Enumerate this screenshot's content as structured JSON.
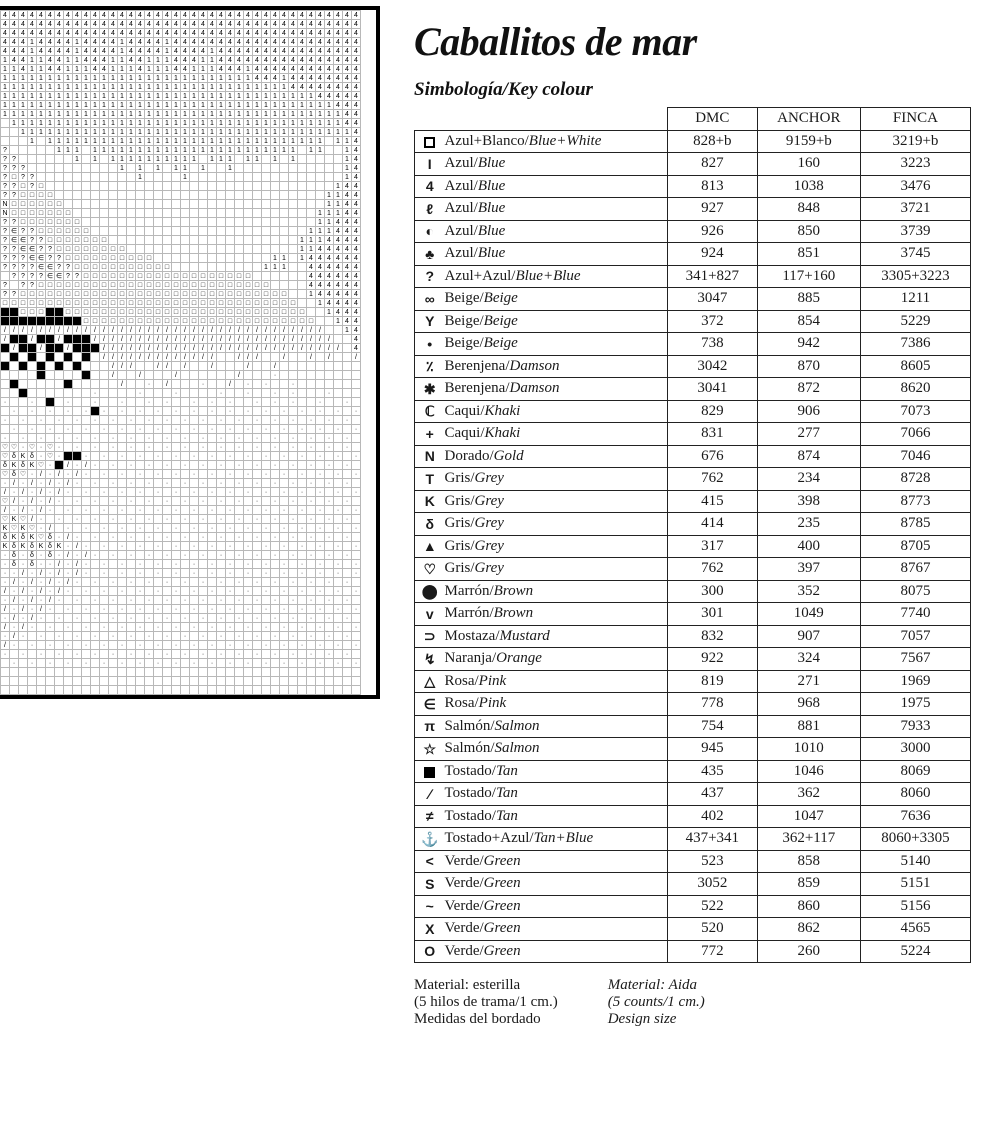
{
  "title": "Caballitos de mar",
  "subtitle": "Simbología/Key colour",
  "table": {
    "headers": [
      "DMC",
      "ANCHOR",
      "FINCA"
    ],
    "rows": [
      {
        "sym": "□",
        "name_es": "Azul+Blanco",
        "name_en": "Blue+White",
        "dmc": "828+b",
        "anchor": "9159+b",
        "finca": "3219+b"
      },
      {
        "sym": "I",
        "name_es": "Azul",
        "name_en": "Blue",
        "dmc": "827",
        "anchor": "160",
        "finca": "3223"
      },
      {
        "sym": "4",
        "name_es": "Azul",
        "name_en": "Blue",
        "dmc": "813",
        "anchor": "1038",
        "finca": "3476"
      },
      {
        "sym": "ℓ",
        "name_es": "Azul",
        "name_en": "Blue",
        "dmc": "927",
        "anchor": "848",
        "finca": "3721"
      },
      {
        "sym": "◐",
        "name_es": "Azul",
        "name_en": "Blue",
        "dmc": "926",
        "anchor": "850",
        "finca": "3739"
      },
      {
        "sym": "♣",
        "name_es": "Azul",
        "name_en": "Blue",
        "dmc": "924",
        "anchor": "851",
        "finca": "3745"
      },
      {
        "sym": "?",
        "name_es": "Azul+Azul",
        "name_en": "Blue+Blue",
        "dmc": "341+827",
        "anchor": "117+160",
        "finca": "3305+3223"
      },
      {
        "sym": "∞",
        "name_es": "Beige",
        "name_en": "Beige",
        "dmc": "3047",
        "anchor": "885",
        "finca": "1211"
      },
      {
        "sym": "Y",
        "name_es": "Beige",
        "name_en": "Beige",
        "dmc": "372",
        "anchor": "854",
        "finca": "5229"
      },
      {
        "sym": "•",
        "name_es": "Beige",
        "name_en": "Beige",
        "dmc": "738",
        "anchor": "942",
        "finca": "7386"
      },
      {
        "sym": "٪",
        "name_es": "Berenjena",
        "name_en": "Damson",
        "dmc": "3042",
        "anchor": "870",
        "finca": "8605"
      },
      {
        "sym": "✱",
        "name_es": "Berenjena",
        "name_en": "Damson",
        "dmc": "3041",
        "anchor": "872",
        "finca": "8620"
      },
      {
        "sym": "ℂ",
        "name_es": "Caqui",
        "name_en": "Khaki",
        "dmc": "829",
        "anchor": "906",
        "finca": "7073"
      },
      {
        "sym": "+",
        "name_es": "Caqui",
        "name_en": "Khaki",
        "dmc": "831",
        "anchor": "277",
        "finca": "7066"
      },
      {
        "sym": "N",
        "name_es": "Dorado",
        "name_en": "Gold",
        "dmc": "676",
        "anchor": "874",
        "finca": "7046"
      },
      {
        "sym": "T",
        "name_es": "Gris",
        "name_en": "Grey",
        "dmc": "762",
        "anchor": "234",
        "finca": "8728"
      },
      {
        "sym": "K",
        "name_es": "Gris",
        "name_en": "Grey",
        "dmc": "415",
        "anchor": "398",
        "finca": "8773"
      },
      {
        "sym": "δ",
        "name_es": "Gris",
        "name_en": "Grey",
        "dmc": "414",
        "anchor": "235",
        "finca": "8785"
      },
      {
        "sym": "▲",
        "name_es": "Gris",
        "name_en": "Grey",
        "dmc": "317",
        "anchor": "400",
        "finca": "8705"
      },
      {
        "sym": "♡",
        "name_es": "Gris",
        "name_en": "Grey",
        "dmc": "762",
        "anchor": "397",
        "finca": "8767"
      },
      {
        "sym": "⬤",
        "name_es": "Marrón",
        "name_en": "Brown",
        "dmc": "300",
        "anchor": "352",
        "finca": "8075"
      },
      {
        "sym": "v",
        "name_es": "Marrón",
        "name_en": "Brown",
        "dmc": "301",
        "anchor": "1049",
        "finca": "7740"
      },
      {
        "sym": "⊃",
        "name_es": "Mostaza",
        "name_en": "Mustard",
        "dmc": "832",
        "anchor": "907",
        "finca": "7057"
      },
      {
        "sym": "↯",
        "name_es": "Naranja",
        "name_en": "Orange",
        "dmc": "922",
        "anchor": "324",
        "finca": "7567"
      },
      {
        "sym": "△",
        "name_es": "Rosa",
        "name_en": "Pink",
        "dmc": "819",
        "anchor": "271",
        "finca": "1969"
      },
      {
        "sym": "∈",
        "name_es": "Rosa",
        "name_en": "Pink",
        "dmc": "778",
        "anchor": "968",
        "finca": "1975"
      },
      {
        "sym": "π",
        "name_es": "Salmón",
        "name_en": "Salmon",
        "dmc": "754",
        "anchor": "881",
        "finca": "7933"
      },
      {
        "sym": "☆",
        "name_es": "Salmón",
        "name_en": "Salmon",
        "dmc": "945",
        "anchor": "1010",
        "finca": "3000"
      },
      {
        "sym": "■",
        "name_es": "Tostado",
        "name_en": "Tan",
        "dmc": "435",
        "anchor": "1046",
        "finca": "8069"
      },
      {
        "sym": "∕",
        "name_es": "Tostado",
        "name_en": "Tan",
        "dmc": "437",
        "anchor": "362",
        "finca": "8060"
      },
      {
        "sym": "≠",
        "name_es": "Tostado",
        "name_en": "Tan",
        "dmc": "402",
        "anchor": "1047",
        "finca": "7636"
      },
      {
        "sym": "⚓",
        "name_es": "Tostado+Azul",
        "name_en": "Tan+Blue",
        "dmc": "437+341",
        "anchor": "362+117",
        "finca": "8060+3305"
      },
      {
        "sym": "<",
        "name_es": "Verde",
        "name_en": "Green",
        "dmc": "523",
        "anchor": "858",
        "finca": "5140"
      },
      {
        "sym": "S",
        "name_es": "Verde",
        "name_en": "Green",
        "dmc": "3052",
        "anchor": "859",
        "finca": "5151"
      },
      {
        "sym": "~",
        "name_es": "Verde",
        "name_en": "Green",
        "dmc": "522",
        "anchor": "860",
        "finca": "5156"
      },
      {
        "sym": "X",
        "name_es": "Verde",
        "name_en": "Green",
        "dmc": "520",
        "anchor": "862",
        "finca": "4565"
      },
      {
        "sym": "O",
        "name_es": "Verde",
        "name_en": "Green",
        "dmc": "772",
        "anchor": "260",
        "finca": "5224"
      }
    ]
  },
  "materials": {
    "left": {
      "l1": "Material: esterilla",
      "l2": "(5 hilos de trama/1 cm.)",
      "l3": "Medidas del bordado"
    },
    "right": {
      "l1": "Material: Aida",
      "l2": "(5 counts/1 cm.)",
      "l3": "Design size"
    }
  },
  "chart": {
    "cols": 40,
    "pattern": [
      "4444444444444444444444444444444444444444",
      "4444444444444444444444444444444444444444",
      "4444444444444444444444444444444444444444",
      "4441444414444144441444444444444444444444",
      "4441444414444144441444414444444444444444",
      "1441144114441144111444114444444444444444",
      "1141144111441114111441114441444444444444",
      "1111111111111111111111111111444144444444",
      "1111111111111111111111111111111144444444",
      "1111111111111111111111111111111111144444",
      "1111111111111111111111111111111111111444",
      "1111111111111111111111111111111111111144",
      " 111111111111111111111111111111111111144",
      "  11111111111111111111111111111111111114",
      "   1 1111111111111111111111111111111 114",
      "?     111 11111111111111111111111 11  14",
      "??      1 1 1111111111 111 11 1 1     14",
      "???          1 1 1 11 1  1            14",
      "?□??           1    1                 14",
      "??□?□                                144",
      "??□□□□                              1144",
      "N□□□□□□                             1144",
      "N□□□□□□□                           11144",
      "??□□□□□□□                          11444",
      "?∈??□□□□□□                        111444",
      "?∈∈??□□□□□□□                     1114444",
      "??∈∈??□□□□□□□□                   1144444",
      "???∈∈??□□□□□□□□□□             11 1444444",
      "????∈∈??□□□□□□□□□□□          111  444444",
      " ????∈∈??□□□□□□□□□□□□□□□□□□□      444444",
      "? ??□□□□□□□□□□□□□□□□□□□□□□□□□□    444444",
      "??□□□□□□□□□□□□□□□□□□□□□□□□□□□□□□  144444",
      "□□□□□□□□□□□□□□□□□□□□□□□□□□□□□□□□□  14444",
      "■■□□□■■□□□□□□□□□□□□□□□□□□□□□□□□□□□  1444",
      "■■■■■■■■■□□□□□□□□□□□□□□□□□□□□□□□□□□  144",
      "////////////////////////////////////  14",
      "/■■/■■/■■■///////////////////////////  4",
      "■/■■/■■/■■■/////////////////////////// 4",
      " ■ ■ ■ ■ ■ /////////////  ///  /  / /  /",
      "■ ■ ■ ■ ■   ///  // /  /   /  /         ",
      "    ■    ■  /  /   /      /   ·         ",
      " ■     ■     /  · /   ·  / · ·  ·       ",
      "  ■       ·    ·   ·    ·  ·  · ·   ·   ",
      "·  · ■ ·  ·  ·  · ·  · · ·  · · ·  ·  · ",
      " · · · · ·■· · · · · · · · · · · · · · ·",
      "· · · · · · · · · · · · · · · · · · · · ",
      " · · · · · · · · · · · · · · · · · · · ·",
      "· · · · · · · · · · · · · · · · · · · · ",
      "♡♡·♡·♡· · · · · · · · · · · · · · · · · ",
      "♡δKδ·♡·■■· · · · · · · · · · · · · · · ·",
      "δKδK♡·■/·/· · · · · · · · · · · · · · · ",
      "♡δ♡·/·/·/· · · · · · · · · · · · · · · ·",
      "·/·/·/·/· · · · · · · · · · · · · · · · ",
      "/·/·/·/· · · · · · · · · · · · · · · · ·",
      "♡/·/·/· · · · · · · · · · · · · · · · · ",
      "/·/·/· · · · · · · · · · · · · · · · · ·",
      "♡K♡/· · · · · · · · · · · · · · · · · · ",
      "K♡K♡·/ · · · · · · · · · · · · · · · · ·",
      "δKδK♡δ·/· · · · · · · · · · · · · · · · ",
      "KδKδKδK·/· · · · · · · · · · · · · · · ·",
      "·δ·δ·δ·/·/· · · · · · · · · · · · · · · ",
      "·δ·δ··/·/· · · · · · · · · · · · · · · ·",
      "··/·/·/·/· · · · · · · · · · · · · · · ·",
      "·/·/·/·/· · · · · · · · · · · · · · · · ",
      "/·/·/·/· · · · · · · · · · · · · · · · ·",
      "·/·/·/· · · · · · · · · · · · · · · · · ",
      "/·/·/· · · · · · · · · · · · · · · · · ·",
      "·/·/· · · · · · · · · · · · · · · · · · ",
      "/·/· · · · · · · · · · · · · · · · · · ·",
      "·/· · · · · · · · · · · · · · · · · · · ",
      "/· · · · · · · · · · · · · · · · · · · ·",
      "· · · · · · · · · · · · · · · · · · · · ",
      " · · · · · · · · · · · · · · · · · · · ·",
      "                                        ",
      "                                        ",
      "                                        "
    ]
  }
}
